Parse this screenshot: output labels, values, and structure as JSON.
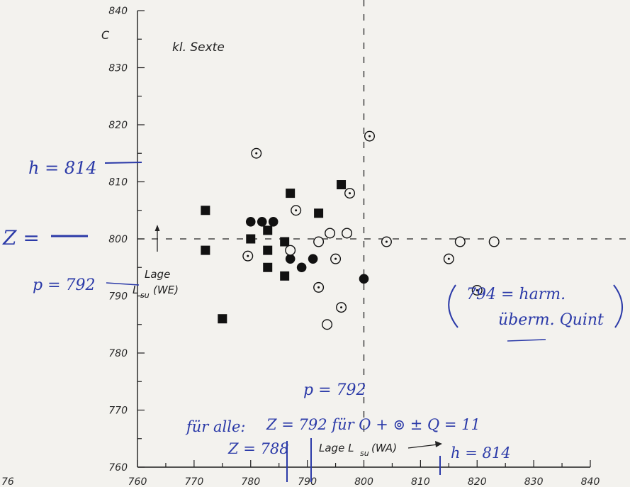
{
  "chart_data": {
    "type": "scatter",
    "title": "kl. Sexte",
    "ylabel_top": "C",
    "ylabel": [
      "Lage",
      "L",
      "su",
      "(WE)"
    ],
    "xlabel": [
      "Lage L",
      "su",
      " (WA)"
    ],
    "xlim": [
      760,
      840
    ],
    "ylim": [
      760,
      840
    ],
    "xticks": [
      760,
      770,
      780,
      790,
      800,
      810,
      820,
      830,
      840
    ],
    "yticks": [
      760,
      770,
      780,
      790,
      800,
      810,
      820,
      830,
      840
    ],
    "xtick_labels": [
      "760",
      "770",
      "780",
      "790",
      "800",
      "810",
      "820",
      "830",
      "840"
    ],
    "ytick_labels": [
      "760",
      "770",
      "780",
      "790",
      "800",
      "810",
      "820",
      "830",
      "840"
    ],
    "corner_label": "76",
    "grid": false,
    "reference_lines": {
      "x": 800,
      "y": 800,
      "style": "dashed"
    },
    "series": [
      {
        "marker": "filled-square",
        "points": [
          [
            772,
            805
          ],
          [
            772,
            798
          ],
          [
            775,
            786
          ],
          [
            780,
            800
          ],
          [
            783,
            801.5
          ],
          [
            783,
            798
          ],
          [
            783,
            795
          ],
          [
            787,
            808
          ],
          [
            786,
            799.5
          ],
          [
            786,
            793.5
          ],
          [
            792,
            804.5
          ],
          [
            796,
            809.5
          ]
        ]
      },
      {
        "marker": "filled-circle",
        "points": [
          [
            780,
            803
          ],
          [
            782,
            803
          ],
          [
            784,
            803
          ],
          [
            787,
            796.5
          ],
          [
            789,
            795
          ],
          [
            791,
            796.5
          ],
          [
            800,
            793
          ]
        ]
      },
      {
        "marker": "open-circle-dot",
        "points": [
          [
            781,
            815
          ],
          [
            779.5,
            797
          ],
          [
            788,
            805
          ],
          [
            801,
            818
          ],
          [
            797.5,
            808
          ],
          [
            795,
            796.5
          ],
          [
            804,
            799.5
          ],
          [
            820,
            791
          ],
          [
            815,
            796.5
          ],
          [
            796,
            788
          ],
          [
            792,
            791.5
          ]
        ]
      },
      {
        "marker": "open-circle",
        "points": [
          [
            787,
            798
          ],
          [
            792,
            799.5
          ],
          [
            794,
            801
          ],
          [
            797,
            801
          ],
          [
            817,
            799.5
          ],
          [
            823,
            799.5
          ],
          [
            793.5,
            785
          ]
        ]
      }
    ]
  },
  "annotations": {
    "h_left": "h = 814",
    "z_left": "Z =",
    "p_left": "p = 792",
    "p_bottom": "p = 792",
    "z_bottom": "Z = 792 für O + ⊚  ± Q = 11",
    "fur_alle": "für alle:",
    "z_788": "Z = 788",
    "h_bottom": "h = 814",
    "note": [
      "794 = harm.",
      "überm. Quint"
    ]
  }
}
